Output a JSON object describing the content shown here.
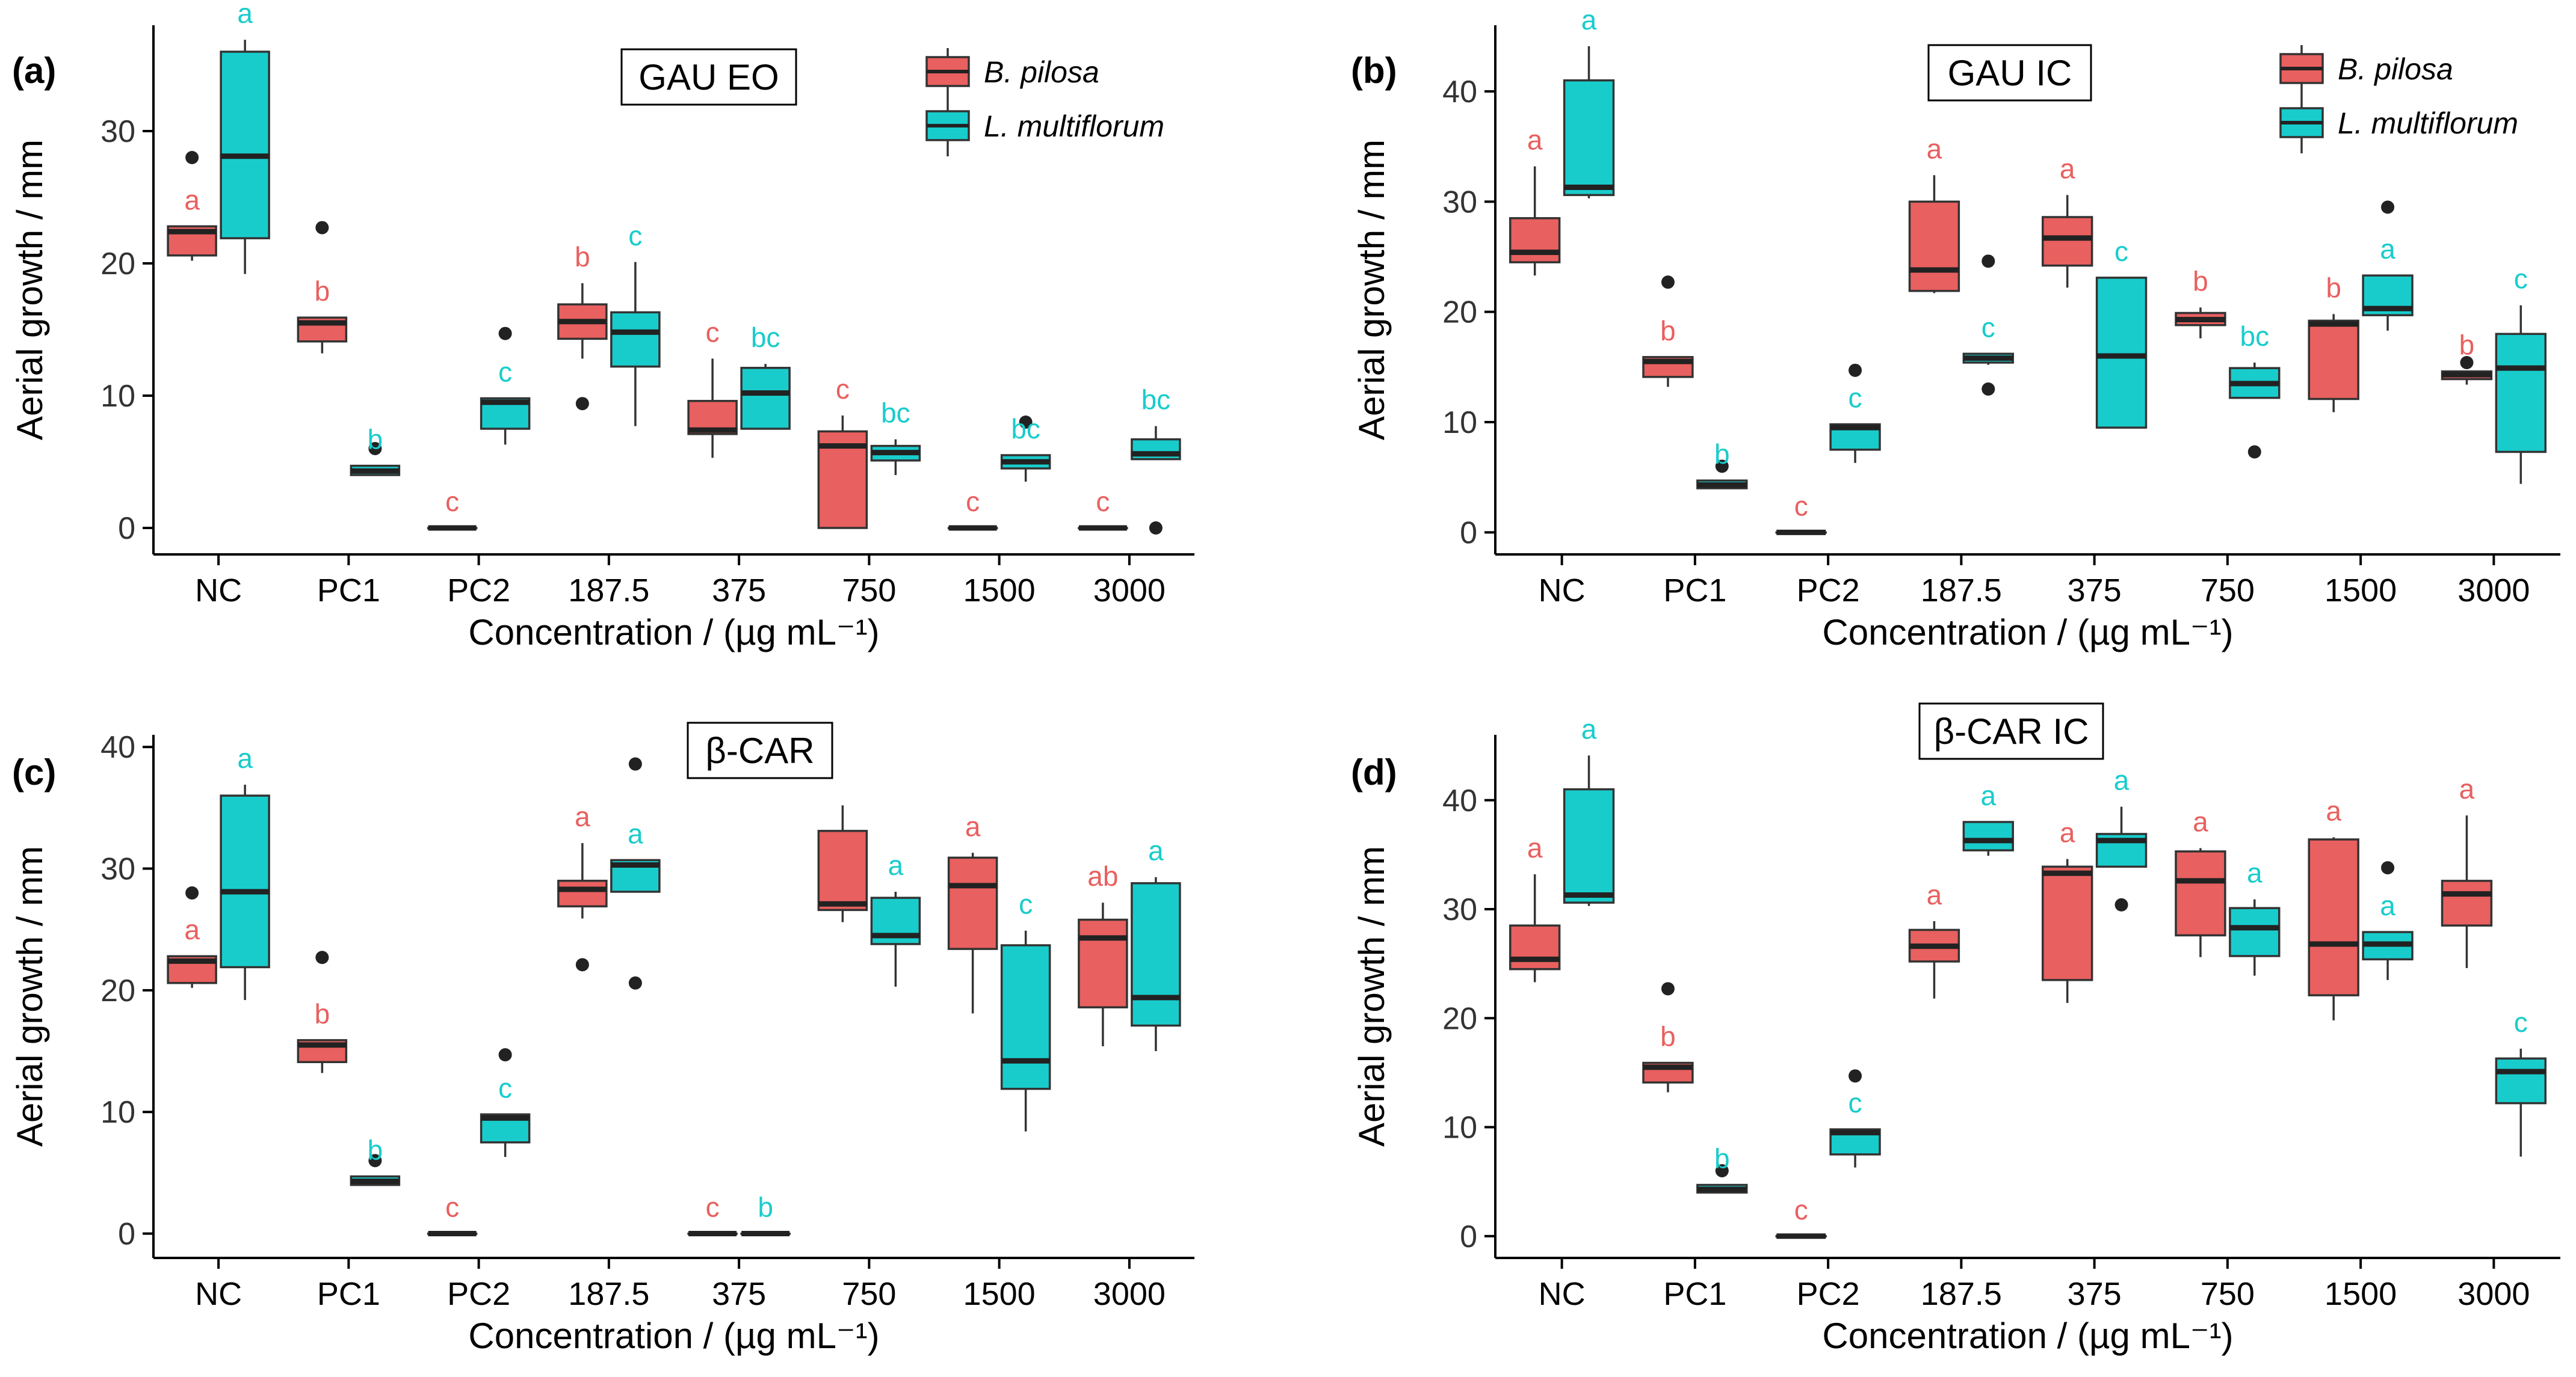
{
  "figure": {
    "categories": [
      "NC",
      "PC1",
      "PC2",
      "187.5",
      "375",
      "750",
      "1500",
      "3000"
    ],
    "xlabel": "Concentration / (µg mL⁻¹)",
    "ylabel": "Aerial growth / mm",
    "legend_title_items": [
      "B. pilosa",
      "L. multiflorum"
    ],
    "colors": {
      "B. pilosa": "#E8605F",
      "L. multiflorum": "#19CCCC"
    }
  },
  "chart_data": [
    {
      "type": "boxplot",
      "panel_label": "(a)",
      "title": "GAU EO",
      "categories": [
        "NC",
        "PC1",
        "PC2",
        "187.5",
        "375",
        "750",
        "1500",
        "3000"
      ],
      "xlabel": "Concentration / (µg mL⁻¹)",
      "ylabel": "Aerial growth / mm",
      "ylim": [
        -2,
        38
      ],
      "yticks": [
        0,
        10,
        20,
        30
      ],
      "legend": {
        "placement": "top-right",
        "entries": [
          "B. pilosa",
          "L. multiflorum"
        ]
      },
      "series": [
        {
          "name": "B. pilosa",
          "boxes": [
            {
              "whisker_low": 20.2,
              "q1": 20.6,
              "median": 22.4,
              "q3": 22.8,
              "whisker_high": 22.8,
              "outliers": [
                28
              ],
              "letter": "a"
            },
            {
              "whisker_low": 13.2,
              "q1": 14.1,
              "median": 15.5,
              "q3": 15.9,
              "whisker_high": 15.9,
              "outliers": [
                22.7
              ],
              "letter": "b"
            },
            {
              "whisker_low": 0,
              "q1": 0,
              "median": 0,
              "q3": 0,
              "whisker_high": 0,
              "outliers": [],
              "letter": "c"
            },
            {
              "whisker_low": 12.8,
              "q1": 14.3,
              "median": 15.6,
              "q3": 16.9,
              "whisker_high": 18.5,
              "outliers": [
                9.4
              ],
              "letter": "b"
            },
            {
              "whisker_low": 5.3,
              "q1": 7.1,
              "median": 7.4,
              "q3": 9.6,
              "whisker_high": 12.8,
              "outliers": [],
              "letter": "c"
            },
            {
              "whisker_low": 0,
              "q1": 0,
              "median": 6.2,
              "q3": 7.3,
              "whisker_high": 8.5,
              "outliers": [],
              "letter": "c"
            },
            {
              "whisker_low": 0,
              "q1": 0,
              "median": 0,
              "q3": 0,
              "whisker_high": 0,
              "outliers": [],
              "letter": "c"
            },
            {
              "whisker_low": 0,
              "q1": 0,
              "median": 0,
              "q3": 0,
              "whisker_high": 0,
              "outliers": [],
              "letter": "c"
            }
          ]
        },
        {
          "name": "L. multiflorum",
          "boxes": [
            {
              "whisker_low": 19.2,
              "q1": 21.9,
              "median": 28.1,
              "q3": 36,
              "whisker_high": 36.9,
              "outliers": [],
              "letter": "a"
            },
            {
              "whisker_low": 4,
              "q1": 4,
              "median": 4.3,
              "q3": 4.7,
              "whisker_high": 4.7,
              "outliers": [
                6
              ],
              "letter": "b"
            },
            {
              "whisker_low": 6.3,
              "q1": 7.5,
              "median": 9.5,
              "q3": 9.8,
              "whisker_high": 9.8,
              "outliers": [
                14.7
              ],
              "letter": "c"
            },
            {
              "whisker_low": 7.7,
              "q1": 12.2,
              "median": 14.8,
              "q3": 16.3,
              "whisker_high": 20.1,
              "outliers": [],
              "letter": "c"
            },
            {
              "whisker_low": 7.5,
              "q1": 7.5,
              "median": 10.2,
              "q3": 12.1,
              "whisker_high": 12.4,
              "outliers": [],
              "letter": "bc"
            },
            {
              "whisker_low": 4,
              "q1": 5.1,
              "median": 5.7,
              "q3": 6.2,
              "whisker_high": 6.7,
              "outliers": [],
              "letter": "bc"
            },
            {
              "whisker_low": 3.5,
              "q1": 4.5,
              "median": 5,
              "q3": 5.5,
              "whisker_high": 5.5,
              "outliers": [
                8
              ],
              "letter": "bc"
            },
            {
              "whisker_low": 5.2,
              "q1": 5.2,
              "median": 5.6,
              "q3": 6.7,
              "whisker_high": 7.7,
              "outliers": [
                0
              ],
              "letter": "bc"
            }
          ]
        }
      ]
    },
    {
      "type": "boxplot",
      "panel_label": "(b)",
      "title": "GAU IC",
      "categories": [
        "NC",
        "PC1",
        "PC2",
        "187.5",
        "375",
        "750",
        "1500",
        "3000"
      ],
      "xlabel": "Concentration / (µg mL⁻¹)",
      "ylabel": "Aerial growth / mm",
      "ylim": [
        -2,
        46
      ],
      "yticks": [
        0,
        10,
        20,
        30,
        40
      ],
      "legend": {
        "placement": "top-right",
        "entries": [
          "B. pilosa",
          "L. multiflorum"
        ]
      },
      "series": [
        {
          "name": "B. pilosa",
          "boxes": [
            {
              "whisker_low": 23.3,
              "q1": 24.5,
              "median": 25.4,
              "q3": 28.5,
              "whisker_high": 33.2,
              "outliers": [],
              "letter": "a"
            },
            {
              "whisker_low": 13.2,
              "q1": 14.1,
              "median": 15.5,
              "q3": 15.9,
              "whisker_high": 15.9,
              "outliers": [
                22.7
              ],
              "letter": "b"
            },
            {
              "whisker_low": 0,
              "q1": 0,
              "median": 0,
              "q3": 0,
              "whisker_high": 0,
              "outliers": [],
              "letter": "c"
            },
            {
              "whisker_low": 21.7,
              "q1": 21.9,
              "median": 23.8,
              "q3": 30,
              "whisker_high": 32.4,
              "outliers": [],
              "letter": "a"
            },
            {
              "whisker_low": 22.2,
              "q1": 24.2,
              "median": 26.7,
              "q3": 28.6,
              "whisker_high": 30.6,
              "outliers": [],
              "letter": "a"
            },
            {
              "whisker_low": 17.6,
              "q1": 18.8,
              "median": 19.3,
              "q3": 19.9,
              "whisker_high": 20.4,
              "outliers": [],
              "letter": "b"
            },
            {
              "whisker_low": 10.9,
              "q1": 12.1,
              "median": 18.9,
              "q3": 19.2,
              "whisker_high": 19.8,
              "outliers": [],
              "letter": "b"
            },
            {
              "whisker_low": 13.4,
              "q1": 13.9,
              "median": 14.3,
              "q3": 14.6,
              "whisker_high": 14.6,
              "outliers": [
                15.4
              ],
              "letter": "b"
            }
          ]
        },
        {
          "name": "L. multiflorum",
          "boxes": [
            {
              "whisker_low": 30.3,
              "q1": 30.6,
              "median": 31.3,
              "q3": 41,
              "whisker_high": 44.1,
              "outliers": [],
              "letter": "a"
            },
            {
              "whisker_low": 4,
              "q1": 4,
              "median": 4.3,
              "q3": 4.7,
              "whisker_high": 4.7,
              "outliers": [
                6
              ],
              "letter": "b"
            },
            {
              "whisker_low": 6.3,
              "q1": 7.5,
              "median": 9.5,
              "q3": 9.8,
              "whisker_high": 9.8,
              "outliers": [
                14.7
              ],
              "letter": "c"
            },
            {
              "whisker_low": 15.2,
              "q1": 15.4,
              "median": 15.8,
              "q3": 16.2,
              "whisker_high": 16.2,
              "outliers": [
                24.6,
                13
              ],
              "letter": "c"
            },
            {
              "whisker_low": 9.5,
              "q1": 9.5,
              "median": 16,
              "q3": 23.1,
              "whisker_high": 23.1,
              "outliers": [],
              "letter": "c"
            },
            {
              "whisker_low": 12.2,
              "q1": 12.2,
              "median": 13.5,
              "q3": 14.9,
              "whisker_high": 15.4,
              "outliers": [
                7.3
              ],
              "letter": "bc"
            },
            {
              "whisker_low": 18.3,
              "q1": 19.7,
              "median": 20.3,
              "q3": 23.3,
              "whisker_high": 23.3,
              "outliers": [
                29.5
              ],
              "letter": "a"
            },
            {
              "whisker_low": 4.4,
              "q1": 7.3,
              "median": 14.9,
              "q3": 18,
              "whisker_high": 20.6,
              "outliers": [],
              "letter": "c"
            }
          ]
        }
      ]
    },
    {
      "type": "boxplot",
      "panel_label": "(c)",
      "title": "β-CAR",
      "categories": [
        "NC",
        "PC1",
        "PC2",
        "187.5",
        "375",
        "750",
        "1500",
        "3000"
      ],
      "xlabel": "Concentration / (µg mL⁻¹)",
      "ylabel": "Aerial growth / mm",
      "ylim": [
        -2,
        41
      ],
      "yticks": [
        0,
        10,
        20,
        30,
        40
      ],
      "series": [
        {
          "name": "B. pilosa",
          "boxes": [
            {
              "whisker_low": 20.2,
              "q1": 20.6,
              "median": 22.4,
              "q3": 22.8,
              "whisker_high": 22.8,
              "outliers": [
                28
              ],
              "letter": "a"
            },
            {
              "whisker_low": 13.2,
              "q1": 14.1,
              "median": 15.5,
              "q3": 15.9,
              "whisker_high": 15.9,
              "outliers": [
                22.7
              ],
              "letter": "b"
            },
            {
              "whisker_low": 0,
              "q1": 0,
              "median": 0,
              "q3": 0,
              "whisker_high": 0,
              "outliers": [],
              "letter": "c"
            },
            {
              "whisker_low": 25.9,
              "q1": 26.9,
              "median": 28.3,
              "q3": 29,
              "whisker_high": 32.1,
              "outliers": [
                22.1
              ],
              "letter": "a"
            },
            {
              "whisker_low": 0,
              "q1": 0,
              "median": 0,
              "q3": 0,
              "whisker_high": 0,
              "outliers": [],
              "letter": "c"
            },
            {
              "whisker_low": 25.6,
              "q1": 26.6,
              "median": 27.1,
              "q3": 33.1,
              "whisker_high": 35.2,
              "outliers": [],
              "letter": ""
            },
            {
              "whisker_low": 18.1,
              "q1": 23.4,
              "median": 28.6,
              "q3": 30.9,
              "whisker_high": 31.3,
              "outliers": [],
              "letter": "a"
            },
            {
              "whisker_low": 15.4,
              "q1": 18.6,
              "median": 24.3,
              "q3": 25.8,
              "whisker_high": 27.2,
              "outliers": [],
              "letter": "ab"
            }
          ]
        },
        {
          "name": "L. multiflorum",
          "boxes": [
            {
              "whisker_low": 19.2,
              "q1": 21.9,
              "median": 28.1,
              "q3": 36,
              "whisker_high": 36.9,
              "outliers": [],
              "letter": "a"
            },
            {
              "whisker_low": 4,
              "q1": 4,
              "median": 4.3,
              "q3": 4.7,
              "whisker_high": 4.7,
              "outliers": [
                6
              ],
              "letter": "b"
            },
            {
              "whisker_low": 6.3,
              "q1": 7.5,
              "median": 9.5,
              "q3": 9.8,
              "whisker_high": 9.8,
              "outliers": [
                14.7
              ],
              "letter": "c"
            },
            {
              "whisker_low": 28.1,
              "q1": 28.1,
              "median": 30.3,
              "q3": 30.7,
              "whisker_high": 30.7,
              "outliers": [
                38.6,
                20.6
              ],
              "letter": "a"
            },
            {
              "whisker_low": 0,
              "q1": 0,
              "median": 0,
              "q3": 0,
              "whisker_high": 0,
              "outliers": [],
              "letter": "b"
            },
            {
              "whisker_low": 20.3,
              "q1": 23.8,
              "median": 24.5,
              "q3": 27.6,
              "whisker_high": 28.1,
              "outliers": [],
              "letter": "a"
            },
            {
              "whisker_low": 8.4,
              "q1": 11.9,
              "median": 14.2,
              "q3": 23.7,
              "whisker_high": 24.9,
              "outliers": [],
              "letter": "c"
            },
            {
              "whisker_low": 15,
              "q1": 17.1,
              "median": 19.4,
              "q3": 28.8,
              "whisker_high": 29.3,
              "outliers": [],
              "letter": "a"
            }
          ]
        }
      ]
    },
    {
      "type": "boxplot",
      "panel_label": "(d)",
      "title": "β-CAR IC",
      "categories": [
        "NC",
        "PC1",
        "PC2",
        "187.5",
        "375",
        "750",
        "1500",
        "3000"
      ],
      "xlabel": "Concentration / (µg mL⁻¹)",
      "ylabel": "Aerial growth / mm",
      "ylim": [
        -2,
        46
      ],
      "yticks": [
        0,
        10,
        20,
        30,
        40
      ],
      "series": [
        {
          "name": "B. pilosa",
          "boxes": [
            {
              "whisker_low": 23.3,
              "q1": 24.5,
              "median": 25.4,
              "q3": 28.5,
              "whisker_high": 33.2,
              "outliers": [],
              "letter": "a"
            },
            {
              "whisker_low": 13.2,
              "q1": 14.1,
              "median": 15.5,
              "q3": 15.9,
              "whisker_high": 15.9,
              "outliers": [
                22.7
              ],
              "letter": "b"
            },
            {
              "whisker_low": 0,
              "q1": 0,
              "median": 0,
              "q3": 0,
              "whisker_high": 0,
              "outliers": [],
              "letter": "c"
            },
            {
              "whisker_low": 21.8,
              "q1": 25.2,
              "median": 26.6,
              "q3": 28.1,
              "whisker_high": 28.9,
              "outliers": [],
              "letter": "a"
            },
            {
              "whisker_low": 21.4,
              "q1": 23.5,
              "median": 33.3,
              "q3": 33.9,
              "whisker_high": 34.6,
              "outliers": [],
              "letter": "a"
            },
            {
              "whisker_low": 25.6,
              "q1": 27.6,
              "median": 32.6,
              "q3": 35.3,
              "whisker_high": 35.6,
              "outliers": [],
              "letter": "a"
            },
            {
              "whisker_low": 19.8,
              "q1": 22.1,
              "median": 26.8,
              "q3": 36.4,
              "whisker_high": 36.6,
              "outliers": [],
              "letter": "a"
            },
            {
              "whisker_low": 24.6,
              "q1": 28.5,
              "median": 31.4,
              "q3": 32.6,
              "whisker_high": 38.6,
              "outliers": [],
              "letter": "a"
            }
          ]
        },
        {
          "name": "L. multiflorum",
          "boxes": [
            {
              "whisker_low": 30.3,
              "q1": 30.6,
              "median": 31.3,
              "q3": 41,
              "whisker_high": 44.1,
              "outliers": [],
              "letter": "a"
            },
            {
              "whisker_low": 4,
              "q1": 4,
              "median": 4.3,
              "q3": 4.7,
              "whisker_high": 4.7,
              "outliers": [
                6
              ],
              "letter": "b"
            },
            {
              "whisker_low": 6.3,
              "q1": 7.5,
              "median": 9.5,
              "q3": 9.8,
              "whisker_high": 9.8,
              "outliers": [
                14.7
              ],
              "letter": "c"
            },
            {
              "whisker_low": 34.9,
              "q1": 35.4,
              "median": 36.3,
              "q3": 38,
              "whisker_high": 38,
              "outliers": [],
              "letter": "a"
            },
            {
              "whisker_low": 33.9,
              "q1": 33.9,
              "median": 36.3,
              "q3": 36.9,
              "whisker_high": 39.4,
              "outliers": [
                30.4
              ],
              "letter": "a"
            },
            {
              "whisker_low": 23.9,
              "q1": 25.7,
              "median": 28.3,
              "q3": 30.1,
              "whisker_high": 30.9,
              "outliers": [],
              "letter": "a"
            },
            {
              "whisker_low": 23.5,
              "q1": 25.4,
              "median": 26.8,
              "q3": 27.9,
              "whisker_high": 27.9,
              "outliers": [
                33.8
              ],
              "letter": "a"
            },
            {
              "whisker_low": 7.3,
              "q1": 12.2,
              "median": 15.1,
              "q3": 16.3,
              "whisker_high": 17.2,
              "outliers": [],
              "letter": "c"
            }
          ]
        }
      ]
    }
  ]
}
